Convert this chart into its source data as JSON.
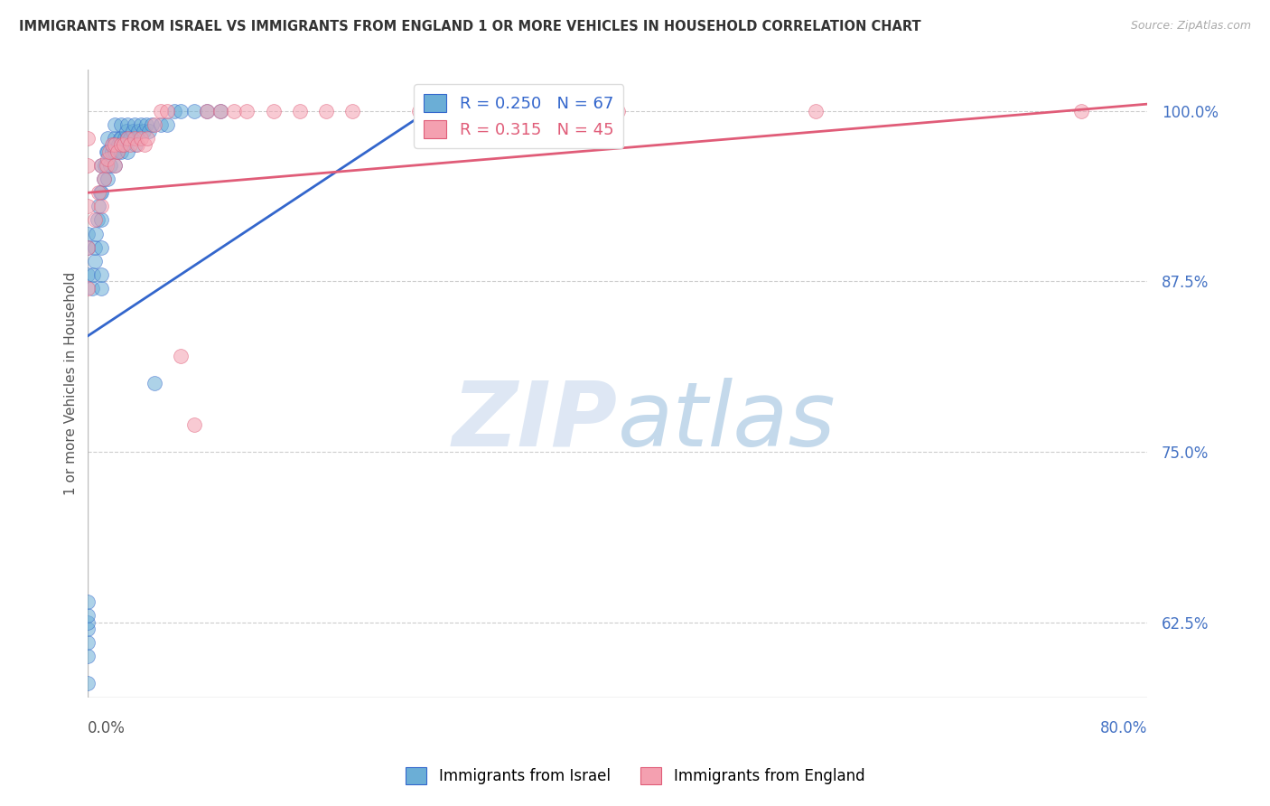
{
  "title": "IMMIGRANTS FROM ISRAEL VS IMMIGRANTS FROM ENGLAND 1 OR MORE VEHICLES IN HOUSEHOLD CORRELATION CHART",
  "source": "Source: ZipAtlas.com",
  "ylabel": "1 or more Vehicles in Household",
  "xlabel_bottom_left": "0.0%",
  "xlabel_bottom_right": "80.0%",
  "ytick_labels": [
    "100.0%",
    "87.5%",
    "75.0%",
    "62.5%"
  ],
  "ytick_values": [
    1.0,
    0.875,
    0.75,
    0.625
  ],
  "xmin": 0.0,
  "xmax": 0.8,
  "ymin": 0.57,
  "ymax": 1.03,
  "legend_label_blue": "Immigrants from Israel",
  "legend_label_pink": "Immigrants from England",
  "R_blue": 0.25,
  "N_blue": 67,
  "R_pink": 0.315,
  "N_pink": 45,
  "blue_color": "#6baed6",
  "pink_color": "#f4a0b0",
  "trendline_blue": "#3366cc",
  "trendline_pink": "#e05c78",
  "watermark_zip": "ZIP",
  "watermark_atlas": "atlas",
  "trendline_blue_x0": 0.0,
  "trendline_blue_y0": 0.835,
  "trendline_blue_x1": 0.265,
  "trendline_blue_y1": 1.005,
  "trendline_pink_x0": 0.0,
  "trendline_pink_y0": 0.94,
  "trendline_pink_x1": 0.8,
  "trendline_pink_y1": 1.005,
  "blue_x": [
    0.0,
    0.0,
    0.0,
    0.0,
    0.0,
    0.0,
    0.0,
    0.0,
    0.0,
    0.0,
    0.003,
    0.004,
    0.005,
    0.005,
    0.006,
    0.007,
    0.008,
    0.009,
    0.01,
    0.01,
    0.01,
    0.01,
    0.01,
    0.01,
    0.012,
    0.013,
    0.014,
    0.015,
    0.015,
    0.015,
    0.017,
    0.018,
    0.019,
    0.02,
    0.02,
    0.02,
    0.02,
    0.022,
    0.023,
    0.024,
    0.025,
    0.025,
    0.025,
    0.027,
    0.028,
    0.029,
    0.03,
    0.03,
    0.03,
    0.032,
    0.034,
    0.035,
    0.036,
    0.038,
    0.04,
    0.042,
    0.044,
    0.046,
    0.048,
    0.05,
    0.055,
    0.06,
    0.065,
    0.07,
    0.08,
    0.09,
    0.1
  ],
  "blue_y": [
    0.58,
    0.6,
    0.61,
    0.62,
    0.625,
    0.63,
    0.64,
    0.88,
    0.9,
    0.91,
    0.87,
    0.88,
    0.89,
    0.9,
    0.91,
    0.92,
    0.93,
    0.94,
    0.87,
    0.88,
    0.9,
    0.92,
    0.94,
    0.96,
    0.95,
    0.96,
    0.97,
    0.95,
    0.97,
    0.98,
    0.96,
    0.97,
    0.975,
    0.96,
    0.97,
    0.98,
    0.99,
    0.97,
    0.975,
    0.98,
    0.97,
    0.98,
    0.99,
    0.975,
    0.98,
    0.985,
    0.97,
    0.98,
    0.99,
    0.98,
    0.985,
    0.99,
    0.975,
    0.985,
    0.99,
    0.985,
    0.99,
    0.985,
    0.99,
    0.8,
    0.99,
    0.99,
    1.0,
    1.0,
    1.0,
    1.0,
    1.0
  ],
  "pink_x": [
    0.0,
    0.0,
    0.0,
    0.0,
    0.0,
    0.005,
    0.008,
    0.01,
    0.01,
    0.012,
    0.014,
    0.015,
    0.016,
    0.018,
    0.02,
    0.02,
    0.022,
    0.025,
    0.027,
    0.03,
    0.032,
    0.035,
    0.037,
    0.04,
    0.043,
    0.045,
    0.05,
    0.055,
    0.06,
    0.07,
    0.08,
    0.09,
    0.1,
    0.11,
    0.12,
    0.14,
    0.16,
    0.18,
    0.2,
    0.25,
    0.3,
    0.35,
    0.4,
    0.55,
    0.75
  ],
  "pink_y": [
    0.87,
    0.9,
    0.93,
    0.96,
    0.98,
    0.92,
    0.94,
    0.93,
    0.96,
    0.95,
    0.96,
    0.965,
    0.97,
    0.975,
    0.96,
    0.975,
    0.97,
    0.975,
    0.975,
    0.98,
    0.975,
    0.98,
    0.975,
    0.98,
    0.975,
    0.98,
    0.99,
    1.0,
    1.0,
    0.82,
    0.77,
    1.0,
    1.0,
    1.0,
    1.0,
    1.0,
    1.0,
    1.0,
    1.0,
    1.0,
    1.0,
    1.0,
    1.0,
    1.0,
    1.0
  ]
}
